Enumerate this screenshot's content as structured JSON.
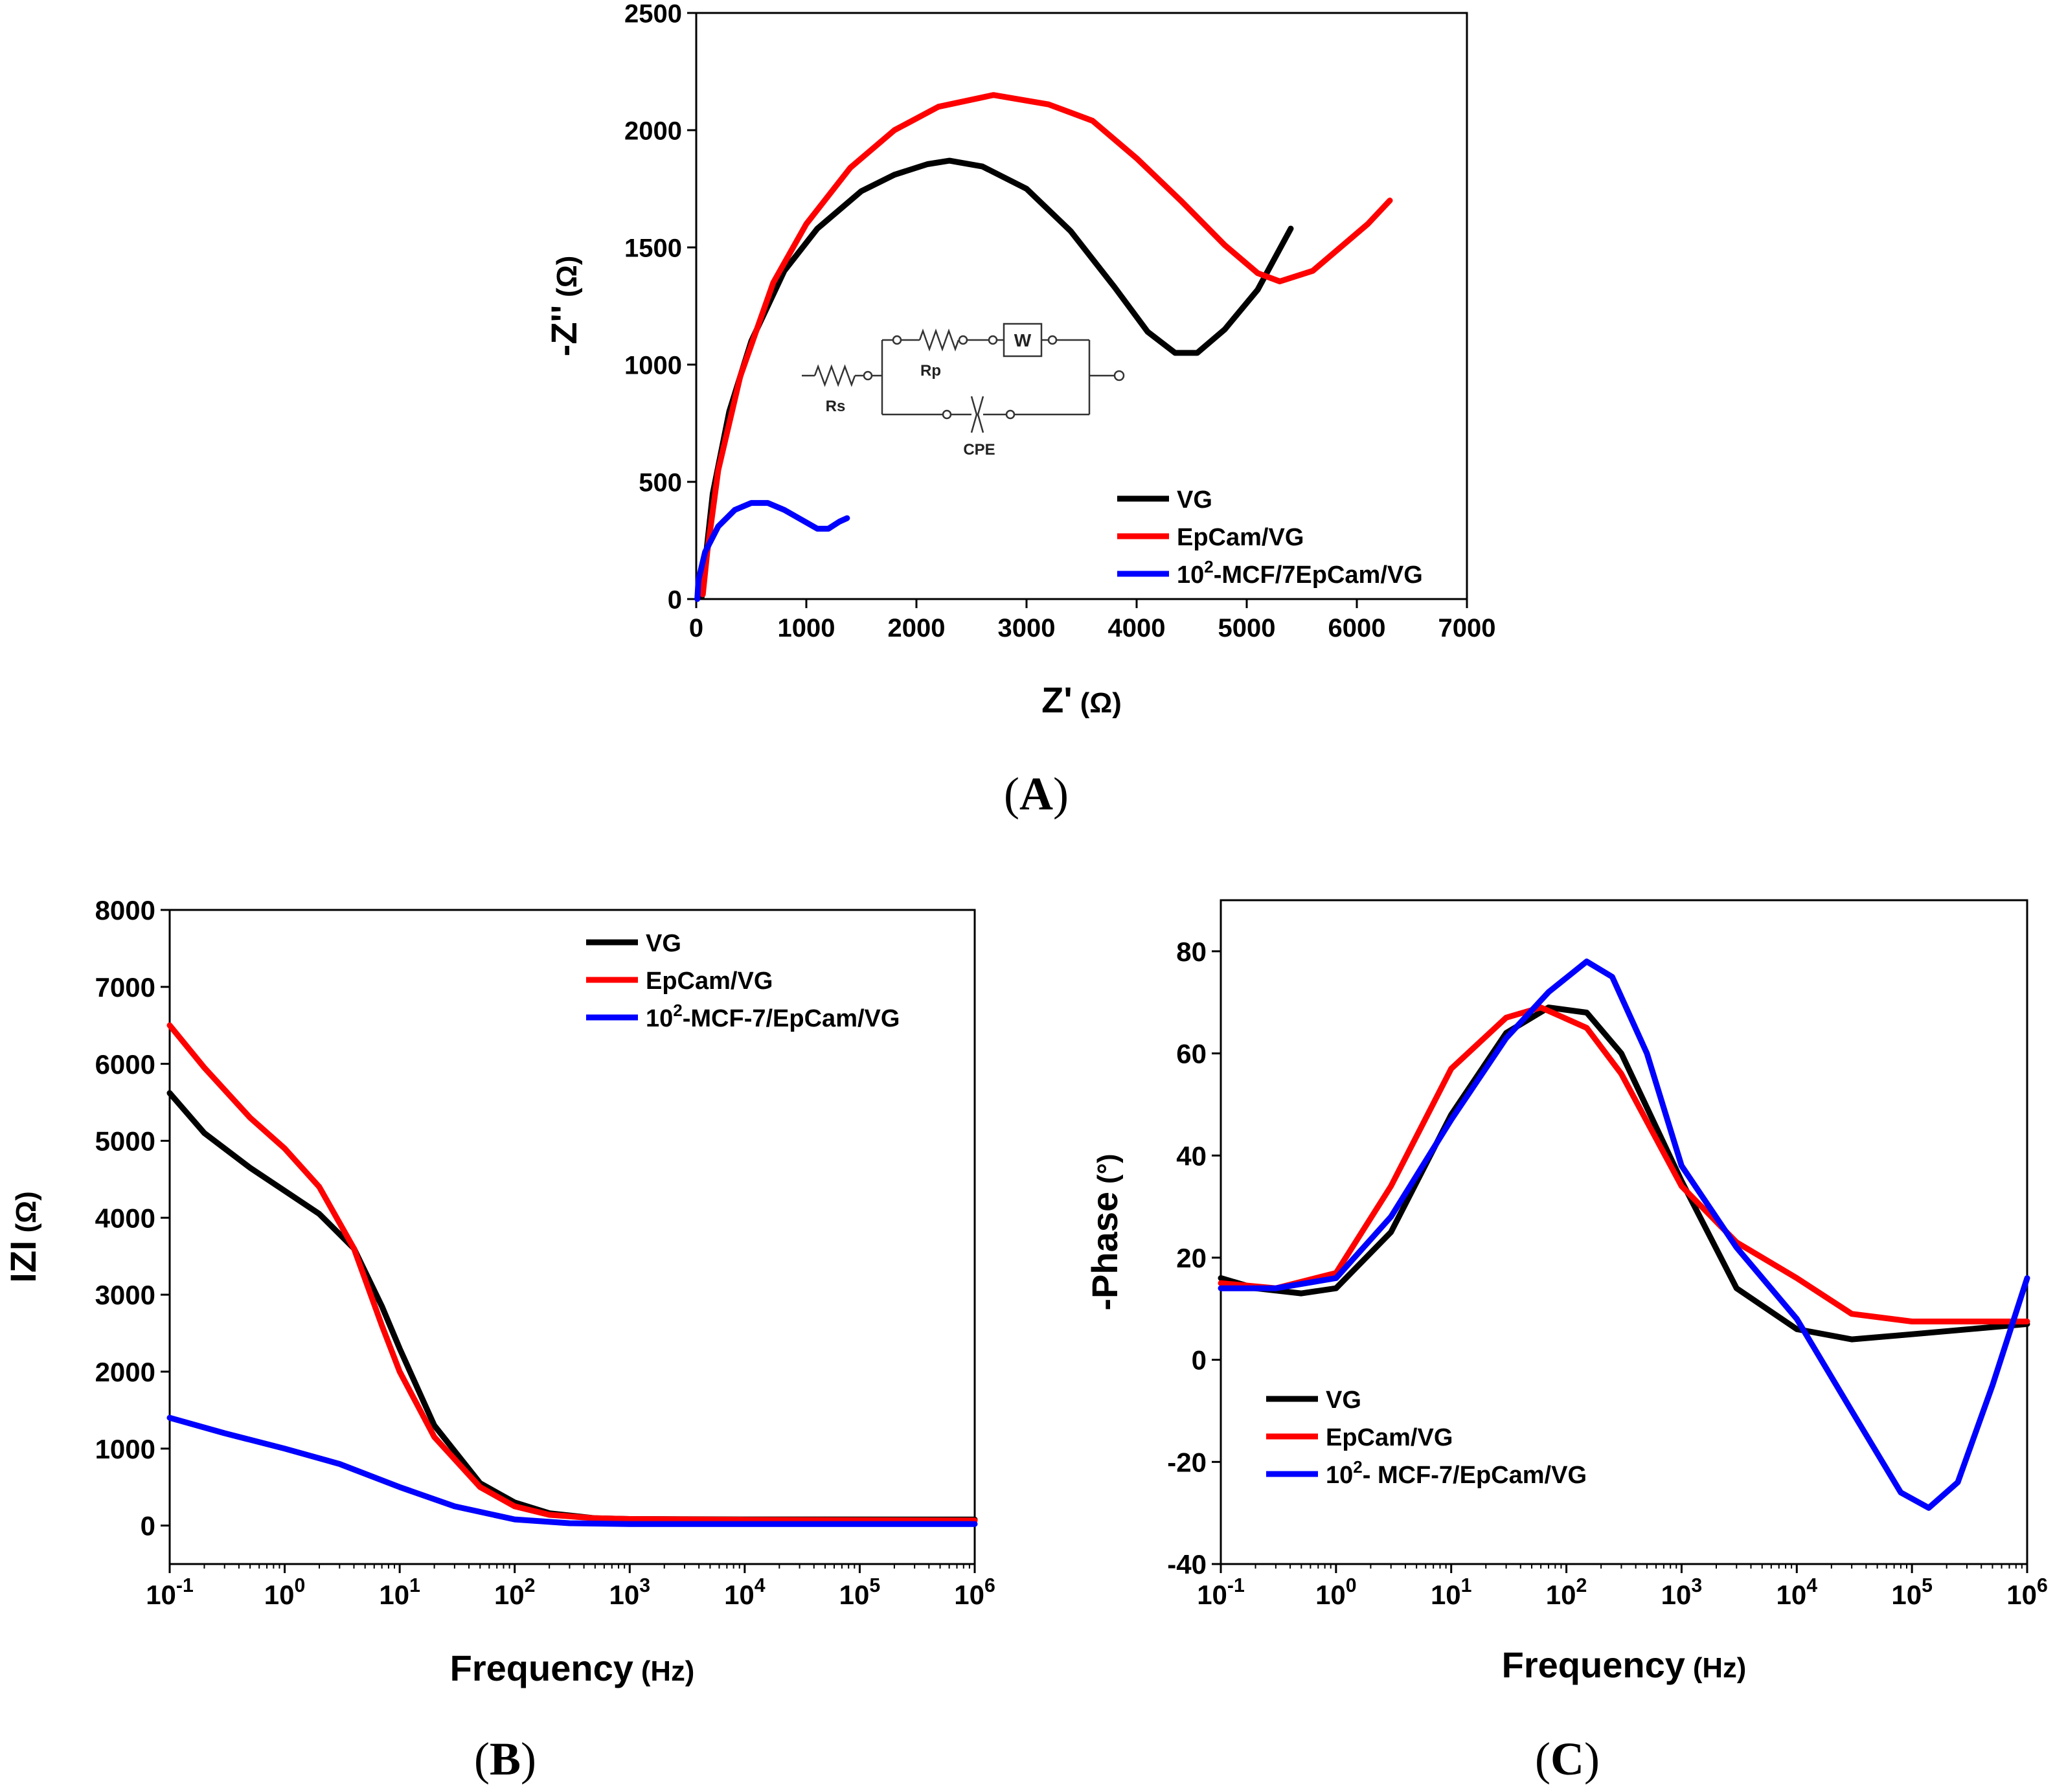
{
  "panels": [
    {
      "label_open": "(",
      "label_letter": "A",
      "label_close": ")"
    },
    {
      "label_open": "(",
      "label_letter": "B",
      "label_close": ")"
    },
    {
      "label_open": "(",
      "label_letter": "C",
      "label_close": ")"
    }
  ],
  "colors": {
    "VG": "#000000",
    "EpCam": "#ff0000",
    "MCF": "#0000ff"
  },
  "chart_data": [
    {
      "id": "A",
      "type": "line",
      "title": "",
      "xlabel_main": "Z'",
      "xlabel_unit": "(Ω)",
      "ylabel_main": "-Z''",
      "ylabel_unit": "(Ω)",
      "xlim": [
        0,
        7000
      ],
      "ylim": [
        0,
        2500
      ],
      "xticks": [
        0,
        1000,
        2000,
        3000,
        4000,
        5000,
        6000,
        7000
      ],
      "yticks": [
        0,
        500,
        1000,
        1500,
        2000,
        2500
      ],
      "legend_position": "bottom-right",
      "series": [
        {
          "name": "VG",
          "color": "#000000",
          "points": [
            [
              50,
              10
            ],
            [
              80,
              150
            ],
            [
              150,
              450
            ],
            [
              300,
              800
            ],
            [
              500,
              1100
            ],
            [
              800,
              1400
            ],
            [
              1100,
              1580
            ],
            [
              1500,
              1740
            ],
            [
              1800,
              1810
            ],
            [
              2100,
              1855
            ],
            [
              2300,
              1870
            ],
            [
              2600,
              1845
            ],
            [
              3000,
              1750
            ],
            [
              3400,
              1570
            ],
            [
              3800,
              1330
            ],
            [
              4100,
              1140
            ],
            [
              4350,
              1050
            ],
            [
              4550,
              1050
            ],
            [
              4800,
              1150
            ],
            [
              5100,
              1320
            ],
            [
              5400,
              1580
            ]
          ]
        },
        {
          "name": "EpCam/VG",
          "color": "#ff0000",
          "points": [
            [
              60,
              20
            ],
            [
              100,
              200
            ],
            [
              200,
              550
            ],
            [
              400,
              950
            ],
            [
              700,
              1350
            ],
            [
              1000,
              1600
            ],
            [
              1400,
              1840
            ],
            [
              1800,
              2000
            ],
            [
              2200,
              2100
            ],
            [
              2700,
              2150
            ],
            [
              3200,
              2110
            ],
            [
              3600,
              2040
            ],
            [
              4000,
              1880
            ],
            [
              4400,
              1700
            ],
            [
              4800,
              1510
            ],
            [
              5100,
              1390
            ],
            [
              5300,
              1355
            ],
            [
              5600,
              1400
            ],
            [
              5900,
              1520
            ],
            [
              6100,
              1600
            ],
            [
              6300,
              1700
            ]
          ]
        },
        {
          "name": "10²-MCF/7EpCam/VG",
          "color": "#0000ff",
          "points": [
            [
              10,
              0
            ],
            [
              20,
              80
            ],
            [
              80,
              200
            ],
            [
              200,
              310
            ],
            [
              350,
              380
            ],
            [
              500,
              410
            ],
            [
              650,
              410
            ],
            [
              800,
              380
            ],
            [
              950,
              340
            ],
            [
              1100,
              300
            ],
            [
              1200,
              300
            ],
            [
              1300,
              330
            ],
            [
              1370,
              345
            ]
          ]
        }
      ],
      "legend": [
        {
          "text": "VG",
          "sup": "",
          "rest": "",
          "color": "#000000"
        },
        {
          "text": "EpCam/VG",
          "sup": "",
          "rest": "",
          "color": "#ff0000"
        },
        {
          "text": "10",
          "sup": "2",
          "rest": "-MCF/7EpCam/VG",
          "color": "#0000ff"
        }
      ],
      "inset_circuit": {
        "labels": [
          "Rs",
          "Rp",
          "W",
          "CPE"
        ]
      }
    },
    {
      "id": "B",
      "type": "line",
      "title": "",
      "xlabel_main": "Frequency",
      "xlabel_unit": "(Hz)",
      "ylabel_main": "IZI",
      "ylabel_unit": "(Ω)",
      "xscale": "log",
      "xlim": [
        0.1,
        1000000
      ],
      "ylim": [
        -500,
        8000
      ],
      "xtick_exponents": [
        "-1",
        "0",
        "1",
        "2",
        "3",
        "4",
        "5",
        "6"
      ],
      "yticks": [
        0,
        1000,
        2000,
        3000,
        4000,
        5000,
        6000,
        7000,
        8000
      ],
      "legend_position": "top-right",
      "series": [
        {
          "name": "VG",
          "color": "#000000",
          "points": [
            [
              0.1,
              5620
            ],
            [
              0.2,
              5100
            ],
            [
              0.5,
              4650
            ],
            [
              1,
              4350
            ],
            [
              2,
              4050
            ],
            [
              4,
              3600
            ],
            [
              7,
              2850
            ],
            [
              10,
              2300
            ],
            [
              20,
              1300
            ],
            [
              50,
              550
            ],
            [
              100,
              300
            ],
            [
              200,
              160
            ],
            [
              500,
              95
            ],
            [
              1000,
              85
            ],
            [
              10000,
              80
            ],
            [
              1000000,
              78
            ]
          ]
        },
        {
          "name": "EpCam/VG",
          "color": "#ff0000",
          "points": [
            [
              0.1,
              6500
            ],
            [
              0.2,
              5950
            ],
            [
              0.5,
              5300
            ],
            [
              1,
              4900
            ],
            [
              2,
              4400
            ],
            [
              4,
              3600
            ],
            [
              7,
              2600
            ],
            [
              10,
              2000
            ],
            [
              20,
              1150
            ],
            [
              50,
              500
            ],
            [
              100,
              250
            ],
            [
              200,
              140
            ],
            [
              500,
              95
            ],
            [
              1000,
              85
            ],
            [
              10000,
              75
            ],
            [
              1000000,
              65
            ]
          ]
        },
        {
          "name": "10²-MCF-7/EpCam/VG",
          "color": "#0000ff",
          "points": [
            [
              0.1,
              1400
            ],
            [
              0.3,
              1200
            ],
            [
              1,
              1000
            ],
            [
              3,
              800
            ],
            [
              10,
              500
            ],
            [
              30,
              250
            ],
            [
              100,
              80
            ],
            [
              300,
              30
            ],
            [
              1000,
              20
            ],
            [
              10000,
              20
            ],
            [
              1000000,
              20
            ]
          ]
        }
      ],
      "legend": [
        {
          "text": "VG",
          "sup": "",
          "rest": "",
          "color": "#000000"
        },
        {
          "text": "EpCam/VG",
          "sup": "",
          "rest": "",
          "color": "#ff0000"
        },
        {
          "text": "10",
          "sup": "2",
          "rest": "-MCF-7/EpCam/VG",
          "color": "#0000ff"
        }
      ]
    },
    {
      "id": "C",
      "type": "line",
      "title": "",
      "xlabel_main": "Frequency",
      "xlabel_unit": "(Hz)",
      "ylabel_main": "-Phase",
      "ylabel_unit": "(°)",
      "xscale": "log",
      "xlim": [
        0.1,
        1000000
      ],
      "ylim": [
        -40,
        90
      ],
      "xtick_exponents": [
        "-1",
        "0",
        "1",
        "2",
        "3",
        "4",
        "5",
        "6"
      ],
      "yticks": [
        -40,
        -20,
        0,
        20,
        40,
        60,
        80
      ],
      "legend_position": "bottom-left",
      "series": [
        {
          "name": "VG",
          "color": "#000000",
          "points": [
            [
              0.1,
              16
            ],
            [
              0.2,
              14
            ],
            [
              0.5,
              13
            ],
            [
              1,
              14
            ],
            [
              3,
              25
            ],
            [
              10,
              48
            ],
            [
              30,
              64
            ],
            [
              70,
              69
            ],
            [
              150,
              68
            ],
            [
              300,
              60
            ],
            [
              1000,
              35
            ],
            [
              3000,
              14
            ],
            [
              10000,
              6
            ],
            [
              30000,
              4
            ],
            [
              100000,
              5
            ],
            [
              1000000,
              7
            ]
          ]
        },
        {
          "name": "EpCam/VG",
          "color": "#ff0000",
          "points": [
            [
              0.1,
              15
            ],
            [
              0.3,
              14
            ],
            [
              1,
              17
            ],
            [
              3,
              34
            ],
            [
              10,
              57
            ],
            [
              30,
              67
            ],
            [
              60,
              69
            ],
            [
              150,
              65
            ],
            [
              300,
              56
            ],
            [
              1000,
              34
            ],
            [
              3000,
              23
            ],
            [
              10000,
              16
            ],
            [
              30000,
              9
            ],
            [
              100000,
              7.5
            ],
            [
              1000000,
              7.5
            ]
          ]
        },
        {
          "name": "10²-MCF-7/EpCam/VG",
          "color": "#0000ff",
          "points": [
            [
              0.1,
              14
            ],
            [
              0.3,
              14
            ],
            [
              1,
              16
            ],
            [
              3,
              28
            ],
            [
              10,
              47
            ],
            [
              30,
              63
            ],
            [
              70,
              72
            ],
            [
              150,
              78
            ],
            [
              250,
              75
            ],
            [
              500,
              60
            ],
            [
              1000,
              38
            ],
            [
              3000,
              22
            ],
            [
              10000,
              8
            ],
            [
              30000,
              -10
            ],
            [
              80000,
              -26
            ],
            [
              140000,
              -29
            ],
            [
              250000,
              -24
            ],
            [
              500000,
              -5
            ],
            [
              1000000,
              16
            ]
          ]
        }
      ],
      "legend": [
        {
          "text": "VG",
          "sup": "",
          "rest": "",
          "color": "#000000"
        },
        {
          "text": "EpCam/VG",
          "sup": "",
          "rest": "",
          "color": "#ff0000"
        },
        {
          "text": "10",
          "sup": "2",
          "rest": "- MCF-7/EpCam/VG",
          "color": "#0000ff"
        }
      ]
    }
  ]
}
